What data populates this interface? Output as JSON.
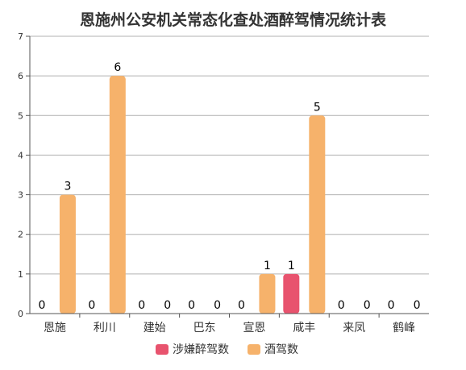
{
  "chart_data": {
    "type": "bar",
    "title": "恩施州公安机关常态化查处酒醉驾情况统计表",
    "xlabel": "",
    "ylabel": "",
    "ylim": [
      0,
      7
    ],
    "yticks": [
      "0",
      "1",
      "2",
      "3",
      "4",
      "5",
      "6",
      "7"
    ],
    "grid": true,
    "legend_position": "bottom",
    "categories": [
      "恩施",
      "利川",
      "建始",
      "巴东",
      "宣恩",
      "咸丰",
      "来凤",
      "鹤峰"
    ],
    "series": [
      {
        "name": "涉嫌醉驾数",
        "color": "#e8536e",
        "values": [
          0,
          0,
          0,
          0,
          0,
          1,
          0,
          0
        ],
        "labels": [
          "0",
          "0",
          "0",
          "0",
          "0",
          "1",
          "0",
          "0"
        ]
      },
      {
        "name": "酒驾数",
        "color": "#f6b26b",
        "values": [
          3,
          6,
          0,
          0,
          1,
          5,
          0,
          0
        ],
        "labels": [
          "3",
          "6",
          "0",
          "0",
          "1",
          "5",
          "0",
          "0"
        ]
      }
    ]
  }
}
